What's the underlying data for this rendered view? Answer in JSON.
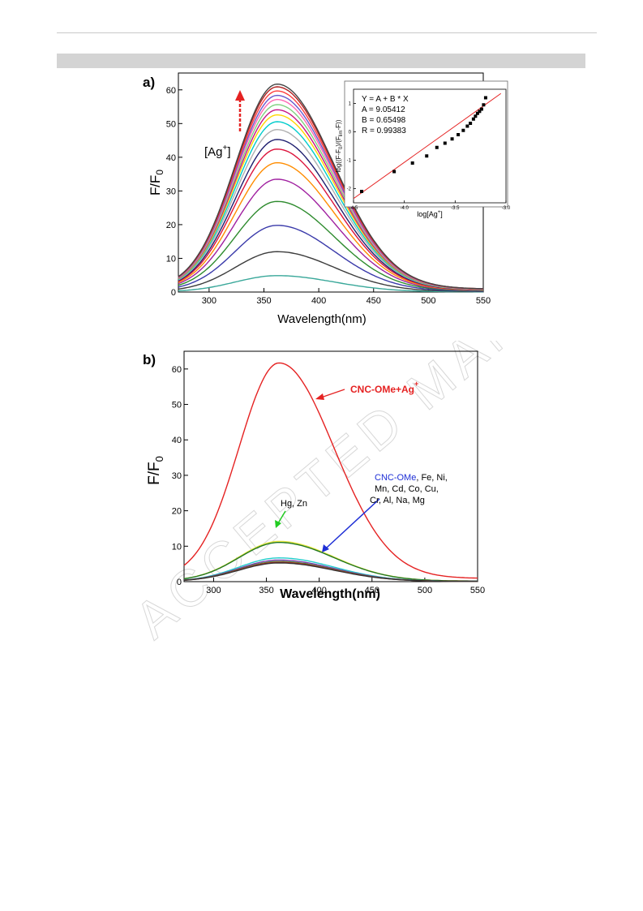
{
  "watermark": {
    "text": "ACCEPTED MANUSCRIPT"
  },
  "colors": {
    "series_a": [
      "#3aa89a",
      "#3c3c3c",
      "#3a3aaa",
      "#2e8b2e",
      "#a020a0",
      "#ff8c00",
      "#dc143c",
      "#1f1f6f",
      "#b0b0b0",
      "#00cccc",
      "#ffd700",
      "#c71585",
      "#7fd17f",
      "#ff69b4",
      "#6a5acd",
      "#ff4040",
      "#b22222",
      "#444444"
    ],
    "red": "#e52222",
    "blue": "#1e2fd6",
    "green": "#22cc22",
    "dark_red": "#c0302a"
  },
  "panel_a": {
    "label": "a)",
    "annotation": "[Ag",
    "annotation_sup": "+",
    "annotation_close": "]",
    "ylabel_main": "F",
    "ylabel_slash": "/F",
    "ylabel_sub": "0",
    "xlabel": "Wavelength(nm)",
    "inset": {
      "fit_lines": [
        "Y = A + B * X",
        "A = 9.05412",
        "B = 0.65498",
        "R = 0.99383"
      ],
      "xlabel": "log[Ag",
      "xlabel_sup": "+",
      "xlabel_close": "]",
      "ylabel": "log((F-F",
      "ylabel_sub": "0",
      "ylabel_mid": ")/(F",
      "ylabel_sub2": "lim",
      "ylabel_end": "-F))"
    }
  },
  "panel_b": {
    "label": "b)",
    "ylabel_main": "F",
    "ylabel_slash": "/F",
    "ylabel_sub": "0",
    "xlabel": "Wavelength(nm)",
    "label_ag": "CNC-OMe+Ag",
    "label_ag_sup": "+",
    "label_hg": "Hg, Zn",
    "label_cnc": "CNC-OMe",
    "label_list_1": ", Fe, Ni,",
    "label_list_2": "Mn, Cd,  Co, Cu,",
    "label_list_3": "Cr, Al, Na, Mg"
  },
  "chart_data": [
    {
      "type": "line",
      "xlabel": "Wavelength(nm)",
      "ylabel": "F/F0",
      "xlim": [
        272,
        550
      ],
      "ylim": [
        0,
        65
      ],
      "xticks": [
        300,
        350,
        400,
        450,
        500,
        550
      ],
      "yticks": [
        0,
        10,
        20,
        30,
        40,
        50,
        60
      ],
      "peak_x": 362,
      "series": [
        {
          "peak": 4.8,
          "color": "#3aa89a"
        },
        {
          "peak": 11.8,
          "color": "#3c3c3c"
        },
        {
          "peak": 19.5,
          "color": "#3a3aaa"
        },
        {
          "peak": 26.5,
          "color": "#2e8b2e"
        },
        {
          "peak": 33.0,
          "color": "#a020a0"
        },
        {
          "peak": 37.8,
          "color": "#ff8c00"
        },
        {
          "peak": 41.8,
          "color": "#dc143c"
        },
        {
          "peak": 44.6,
          "color": "#1f1f6f"
        },
        {
          "peak": 47.5,
          "color": "#b0b0b0"
        },
        {
          "peak": 49.8,
          "color": "#00cccc"
        },
        {
          "peak": 51.8,
          "color": "#ffd700"
        },
        {
          "peak": 53.3,
          "color": "#c71585"
        },
        {
          "peak": 54.8,
          "color": "#7fd17f"
        },
        {
          "peak": 56.3,
          "color": "#ff69b4"
        },
        {
          "peak": 57.5,
          "color": "#6a5acd"
        },
        {
          "peak": 58.8,
          "color": "#ff4040"
        },
        {
          "peak": 60.0,
          "color": "#b22222"
        },
        {
          "peak": 60.8,
          "color": "#444444"
        }
      ]
    },
    {
      "type": "scatter",
      "xlabel": "log[Ag+]",
      "ylabel": "log((F-F0)/(Flim-F))",
      "xlim": [
        -4.5,
        -3.0
      ],
      "ylim": [
        -2.5,
        1.5
      ],
      "xticks": [
        -4.5,
        -4.0,
        -3.5,
        -3.0
      ],
      "yticks": [
        -2,
        -1,
        0,
        1
      ],
      "fit": {
        "intercept": 9.05412,
        "slope": 0.65498,
        "x_range": [
          -4.5,
          -3.05
        ]
      },
      "x": [
        -4.42,
        -4.1,
        -3.92,
        -3.78,
        -3.68,
        -3.6,
        -3.53,
        -3.47,
        -3.42,
        -3.38,
        -3.35,
        -3.32,
        -3.3,
        -3.28,
        -3.26,
        -3.24,
        -3.22,
        -3.2
      ],
      "y": [
        -2.1,
        -1.4,
        -1.1,
        -0.85,
        -0.55,
        -0.4,
        -0.25,
        -0.1,
        0.05,
        0.2,
        0.3,
        0.45,
        0.55,
        0.65,
        0.72,
        0.8,
        0.95,
        1.2
      ]
    },
    {
      "type": "line",
      "xlabel": "Wavelength(nm)",
      "ylabel": "F/F0",
      "xlim": [
        272,
        550
      ],
      "ylim": [
        0,
        65
      ],
      "xticks": [
        300,
        350,
        400,
        450,
        500,
        550
      ],
      "yticks": [
        0,
        10,
        20,
        30,
        40,
        50,
        60
      ],
      "peak_x": 362,
      "series": [
        {
          "name": "CNC-OMe+Ag+",
          "peak": 60.8,
          "color": "#e52222"
        },
        {
          "name": "Hg, Zn",
          "peak": 11.2,
          "color": "#e6e640"
        },
        {
          "peak": 10.9,
          "color": "#227722"
        },
        {
          "peak": 6.6,
          "color": "#22cccc"
        },
        {
          "peak": 6.0,
          "color": "#7a3aaa"
        },
        {
          "peak": 5.6,
          "color": "#2e8b2e"
        },
        {
          "peak": 5.4,
          "color": "#c0302a"
        },
        {
          "peak": 5.2,
          "color": "#333333"
        }
      ]
    }
  ]
}
